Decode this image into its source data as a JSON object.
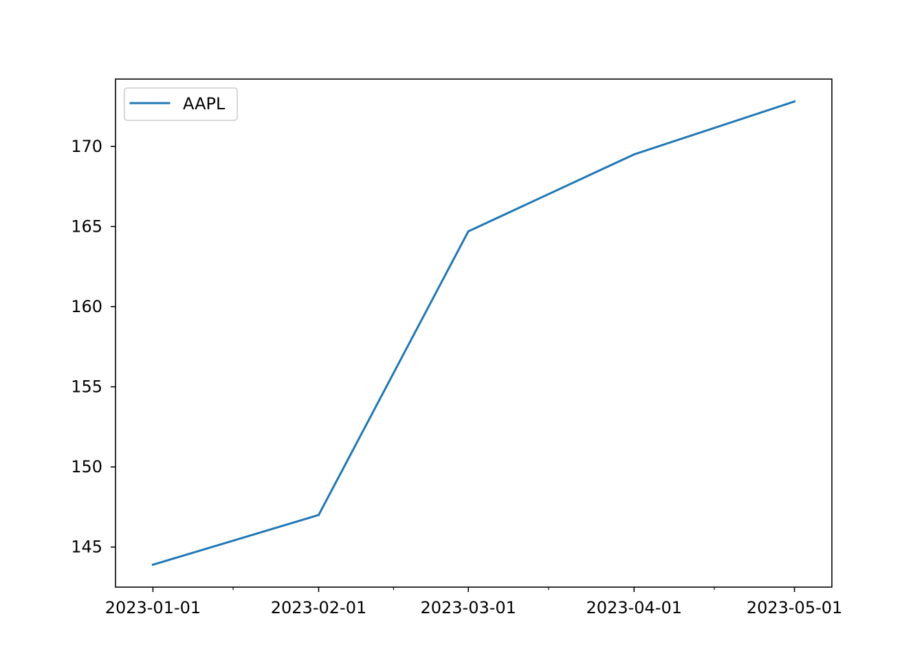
{
  "chart_data": {
    "type": "line",
    "title": "",
    "xlabel": "",
    "ylabel": "",
    "x": [
      "2023-01-01",
      "2023-02-01",
      "2023-03-01",
      "2023-04-01",
      "2023-05-01"
    ],
    "series": [
      {
        "name": "AAPL",
        "color": "#1f77b4",
        "values": [
          143.9,
          147.0,
          164.7,
          169.5,
          172.8
        ]
      }
    ],
    "xlim": [
      "2022-12-25",
      "2023-05-08"
    ],
    "ylim": [
      142.5,
      174.2
    ],
    "x_major_ticks": [
      "2023-01-01",
      "2023-02-01",
      "2023-03-01",
      "2023-04-01",
      "2023-05-01"
    ],
    "x_minor_ticks": [
      "2023-01-16",
      "2023-02-15",
      "2023-03-16",
      "2023-04-16"
    ],
    "yticks": [
      145,
      150,
      155,
      160,
      165,
      170
    ],
    "grid": false,
    "legend": {
      "position": "top-left"
    }
  }
}
